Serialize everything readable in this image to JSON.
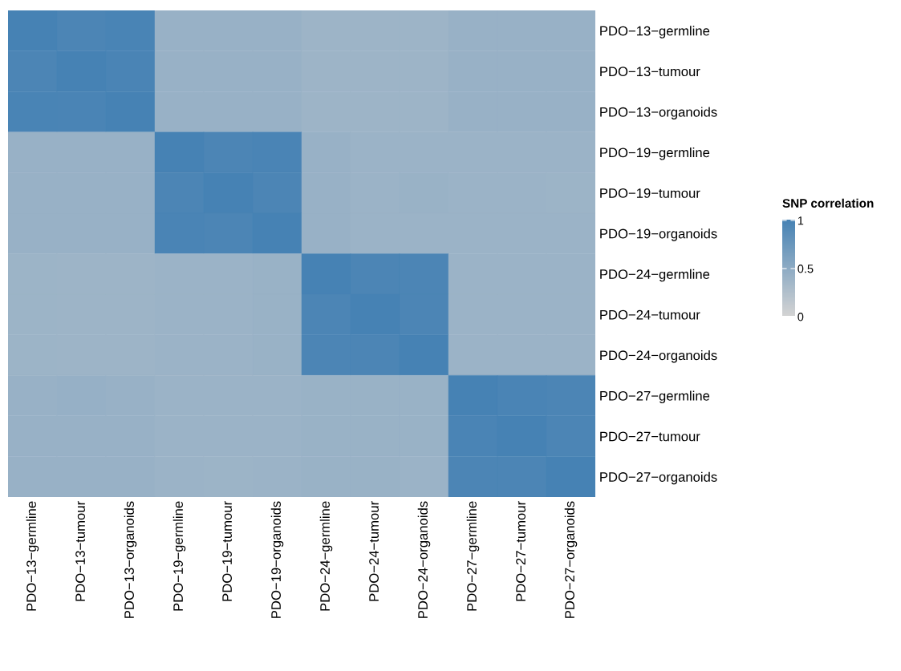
{
  "chart_data": {
    "type": "heatmap",
    "clabel": "SNP correlation",
    "categories": [
      "PDO−13−germline",
      "PDO−13−tumour",
      "PDO−13−organoids",
      "PDO−19−germline",
      "PDO−19−tumour",
      "PDO−19−organoids",
      "PDO−24−germline",
      "PDO−24−tumour",
      "PDO−24−organoids",
      "PDO−27−germline",
      "PDO−27−tumour",
      "PDO−27−organoids"
    ],
    "y_categories": [
      "PDO−13−germline",
      "PDO−13−tumour",
      "PDO−13−organoids",
      "PDO−19−germline",
      "PDO−19−tumour",
      "PDO−19−organoids",
      "PDO−24−germline",
      "PDO−24−tumour",
      "PDO−24−organoids",
      "PDO−27−germline",
      "PDO−27−tumour",
      "PDO−27−organoids"
    ],
    "cells": [
      [
        1.0,
        0.96,
        0.98,
        0.42,
        0.42,
        0.42,
        0.38,
        0.38,
        0.38,
        0.42,
        0.42,
        0.42
      ],
      [
        0.96,
        1.0,
        0.97,
        0.42,
        0.42,
        0.42,
        0.38,
        0.38,
        0.38,
        0.42,
        0.42,
        0.42
      ],
      [
        0.98,
        0.97,
        1.0,
        0.42,
        0.42,
        0.42,
        0.38,
        0.38,
        0.38,
        0.42,
        0.42,
        0.42
      ],
      [
        0.42,
        0.42,
        0.42,
        1.0,
        0.96,
        0.97,
        0.42,
        0.4,
        0.4,
        0.4,
        0.4,
        0.4
      ],
      [
        0.42,
        0.42,
        0.42,
        0.96,
        1.0,
        0.96,
        0.42,
        0.4,
        0.41,
        0.4,
        0.4,
        0.39
      ],
      [
        0.42,
        0.42,
        0.42,
        0.97,
        0.96,
        1.0,
        0.42,
        0.4,
        0.4,
        0.4,
        0.4,
        0.4
      ],
      [
        0.39,
        0.38,
        0.38,
        0.4,
        0.4,
        0.41,
        1.0,
        0.96,
        0.96,
        0.4,
        0.4,
        0.4
      ],
      [
        0.39,
        0.38,
        0.38,
        0.4,
        0.4,
        0.41,
        0.96,
        1.0,
        0.96,
        0.4,
        0.4,
        0.4
      ],
      [
        0.39,
        0.38,
        0.38,
        0.4,
        0.4,
        0.41,
        0.96,
        0.96,
        1.0,
        0.4,
        0.4,
        0.4
      ],
      [
        0.42,
        0.43,
        0.42,
        0.4,
        0.4,
        0.4,
        0.41,
        0.41,
        0.41,
        1.0,
        0.97,
        0.96
      ],
      [
        0.42,
        0.42,
        0.42,
        0.4,
        0.4,
        0.4,
        0.41,
        0.41,
        0.41,
        0.97,
        1.0,
        0.96
      ],
      [
        0.42,
        0.42,
        0.42,
        0.4,
        0.39,
        0.4,
        0.41,
        0.41,
        0.4,
        0.96,
        0.96,
        1.0
      ]
    ],
    "colors": [
      "#d3d3d3",
      "#4682b4"
    ],
    "clim": [
      0,
      1
    ],
    "cticks": [
      0,
      0.5,
      1
    ]
  }
}
